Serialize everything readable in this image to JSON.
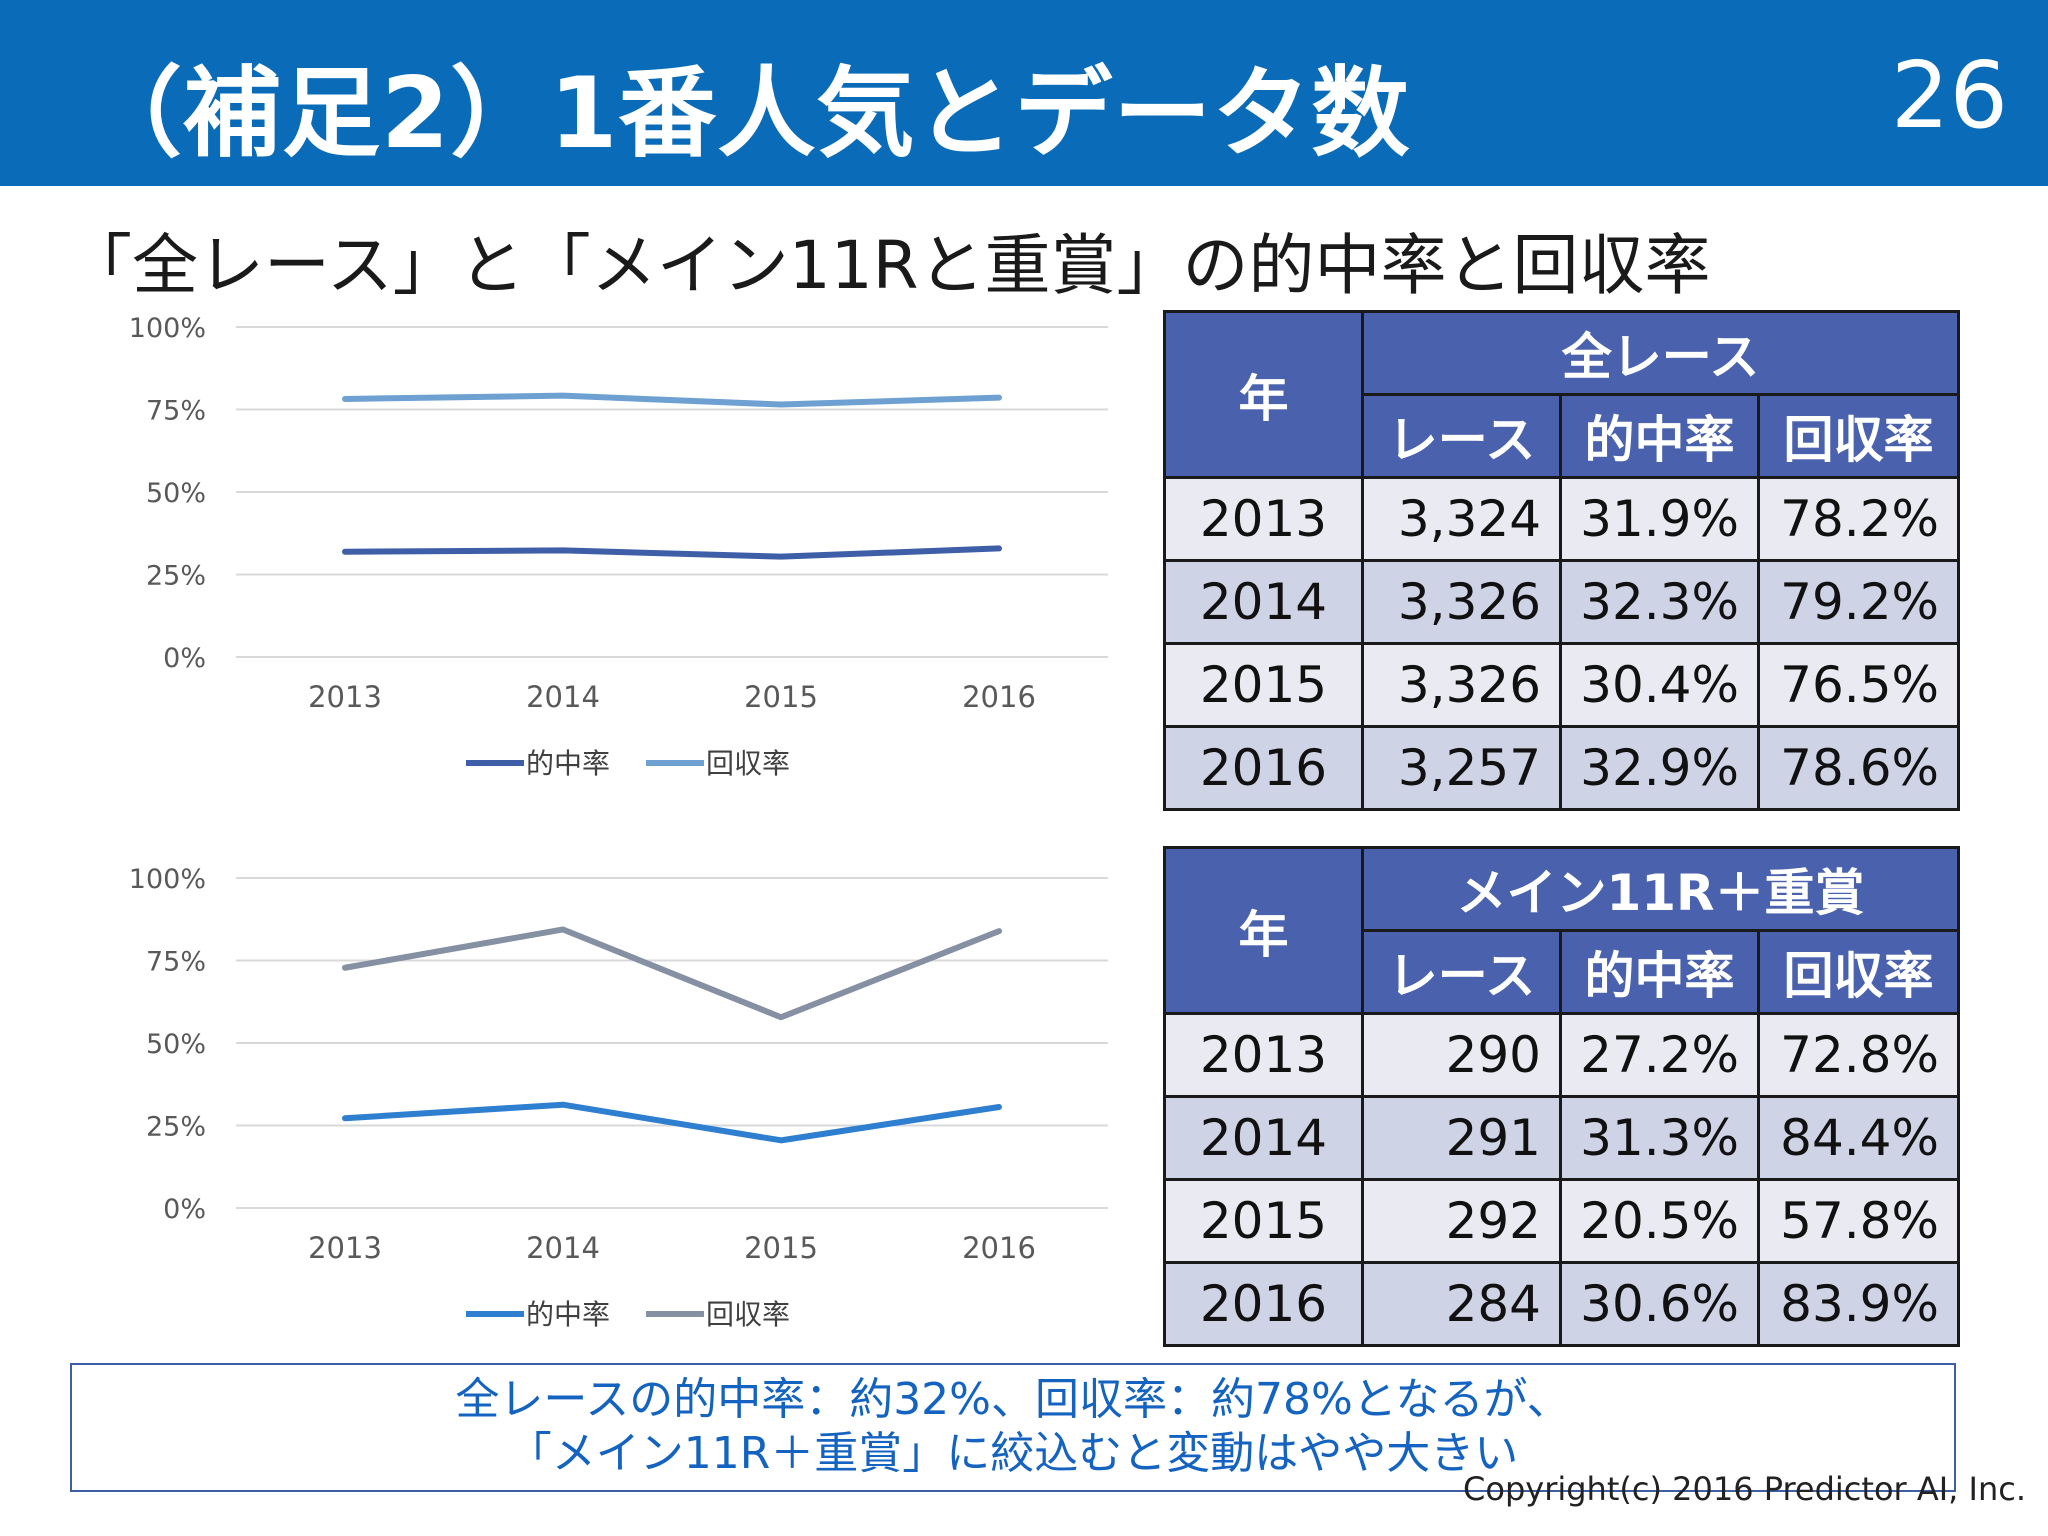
{
  "header": {
    "title": "（補足2）1番人気とデータ数",
    "page_number": "26"
  },
  "subtitle": "「全レース」と「メイン11Rと重賞」の的中率と回収率",
  "chart_data": [
    {
      "type": "line",
      "categories": [
        "2013",
        "2014",
        "2015",
        "2016"
      ],
      "y_ticks": [
        "100%",
        "75%",
        "50%",
        "25%",
        "0%"
      ],
      "ylim": [
        0,
        100
      ],
      "grid": true,
      "legend_position": "bottom",
      "series": [
        {
          "name": "的中率",
          "values": [
            31.9,
            32.3,
            30.4,
            32.9
          ],
          "color": "#3f5ea8"
        },
        {
          "name": "回収率",
          "values": [
            78.2,
            79.2,
            76.5,
            78.6
          ],
          "color": "#6fa0d2"
        }
      ]
    },
    {
      "type": "line",
      "categories": [
        "2013",
        "2014",
        "2015",
        "2016"
      ],
      "y_ticks": [
        "100%",
        "75%",
        "50%",
        "25%",
        "0%"
      ],
      "ylim": [
        0,
        100
      ],
      "grid": true,
      "legend_position": "bottom",
      "series": [
        {
          "name": "的中率",
          "values": [
            27.2,
            31.3,
            20.5,
            30.6
          ],
          "color": "#2f7fd0"
        },
        {
          "name": "回収率",
          "values": [
            72.8,
            84.4,
            57.8,
            83.9
          ],
          "color": "#8590a3"
        }
      ]
    }
  ],
  "tables": [
    {
      "year_header": "年",
      "group_header": "全レース",
      "columns": [
        "レース",
        "的中率",
        "回収率"
      ],
      "rows": [
        {
          "year": "2013",
          "races": "3,324",
          "hit": "31.9%",
          "ret": "78.2%"
        },
        {
          "year": "2014",
          "races": "3,326",
          "hit": "32.3%",
          "ret": "79.2%"
        },
        {
          "year": "2015",
          "races": "3,326",
          "hit": "30.4%",
          "ret": "76.5%"
        },
        {
          "year": "2016",
          "races": "3,257",
          "hit": "32.9%",
          "ret": "78.6%"
        }
      ]
    },
    {
      "year_header": "年",
      "group_header": "メイン11R＋重賞",
      "columns": [
        "レース",
        "的中率",
        "回収率"
      ],
      "rows": [
        {
          "year": "2013",
          "races": "290",
          "hit": "27.2%",
          "ret": "72.8%"
        },
        {
          "year": "2014",
          "races": "291",
          "hit": "31.3%",
          "ret": "84.4%"
        },
        {
          "year": "2015",
          "races": "292",
          "hit": "20.5%",
          "ret": "57.8%"
        },
        {
          "year": "2016",
          "races": "284",
          "hit": "30.6%",
          "ret": "83.9%"
        }
      ]
    }
  ],
  "note": {
    "line1": "全レースの的中率：約32%、回収率：約78%となるが、",
    "line2": "「メイン11R＋重賞」に絞込むと変動はやや大きい"
  },
  "copyright": "Copyright(c) 2016 Predictor AI, Inc."
}
